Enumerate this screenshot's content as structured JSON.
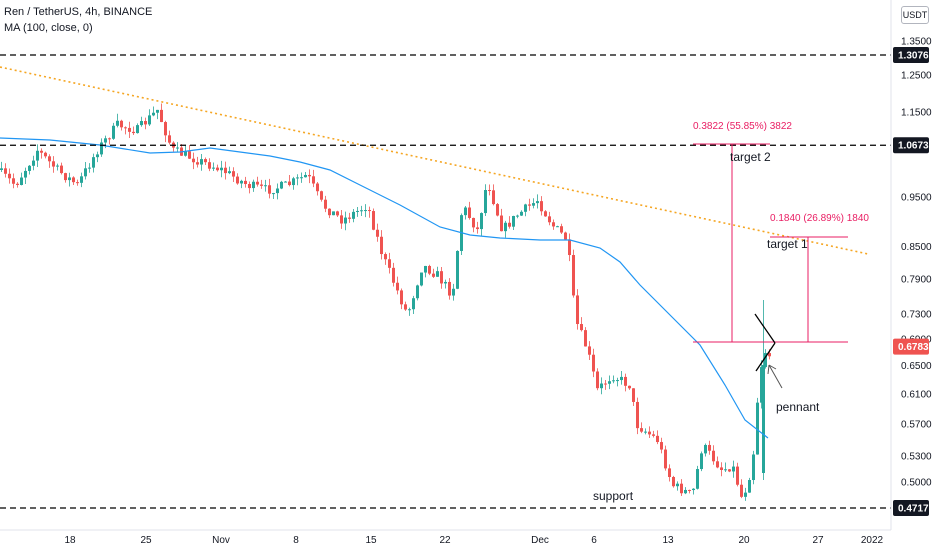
{
  "header": {
    "title": "Ren / TetherUS, 4h, BINANCE",
    "indicator": "MA (100, close, 0)"
  },
  "currency_label": "USDT",
  "chart_data": {
    "type": "candlestick",
    "symbol": "Ren / TetherUS",
    "interval": "4h",
    "exchange": "BINANCE",
    "y_axis": {
      "scale": "log",
      "range": [
        0.45,
        1.5
      ],
      "tick_labels": [
        "1.3500",
        "1.2500",
        "1.1500",
        "0.9500",
        "0.8500",
        "0.7900",
        "0.7300",
        "0.6900",
        "0.6500",
        "0.6100",
        "0.5700",
        "0.5300",
        "0.5000"
      ]
    },
    "x_axis": {
      "tick_labels": [
        "18",
        "25",
        "Nov",
        "8",
        "15",
        "22",
        "Dec",
        "6",
        "13",
        "20",
        "27",
        "2022"
      ]
    },
    "price_levels": [
      {
        "label": "1.3076",
        "value": 1.3076,
        "style": "dashed"
      },
      {
        "label": "1.0673",
        "value": 1.0673,
        "style": "dashed"
      },
      {
        "label": "0.4717",
        "value": 0.4717,
        "style": "dashed"
      }
    ],
    "current_price": {
      "label": "0.6783",
      "value": 0.6783,
      "color": "#ef5350"
    },
    "annotations": {
      "target1_label": "target 1",
      "target2_label": "target 2",
      "target1_measure": "0.1840 (26.89%) 1840",
      "target2_measure": "0.3822 (55.85%) 3822",
      "pennant_label": "pennant",
      "support_label": "support"
    },
    "colors": {
      "up": "#26a69a",
      "down": "#ef5350",
      "ma": "#2196f3",
      "trendline": "#f5a623",
      "measure": "#e91e63",
      "level": "#000000"
    },
    "grid": false
  }
}
